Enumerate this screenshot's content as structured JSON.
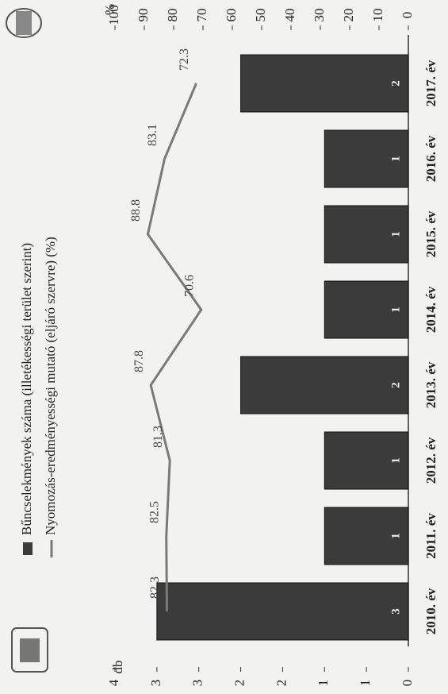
{
  "chart_data": {
    "type": "bar",
    "categories": [
      "2010. év",
      "2011. év",
      "2012. év",
      "2013. év",
      "2014. év",
      "2015. év",
      "2016. év",
      "2017. év"
    ],
    "series": [
      {
        "name": "Bűncselekmények száma (illetékességi terület szerint)",
        "color": "#3b3b3b",
        "type": "bar",
        "values": [
          3,
          1,
          1,
          2,
          1,
          1,
          1,
          2
        ]
      },
      {
        "name": "Nyomozás-eredményességi mutató (eljáró szervre) (%)",
        "color": "#7a7a7a",
        "type": "line",
        "axis": "y2",
        "values": [
          82.3,
          82.5,
          81.3,
          87.8,
          70.6,
          88.8,
          83.1,
          72.3
        ]
      }
    ],
    "ylabel": "db",
    "y2label": "%",
    "ylim": [
      0,
      3.5
    ],
    "yticks": [
      0,
      {
        "value": 0.5,
        "label": "1"
      },
      1,
      {
        "value": 1.5,
        "label": "2"
      },
      2,
      {
        "value": 2.5,
        "label": "3"
      },
      3,
      {
        "value": 3.5,
        "label": "4"
      }
    ],
    "y2lim": [
      0,
      100
    ],
    "y2ticks": [
      0,
      10,
      20,
      30,
      40,
      50,
      60,
      70,
      80,
      90,
      100
    ],
    "legend": "top-left"
  }
}
